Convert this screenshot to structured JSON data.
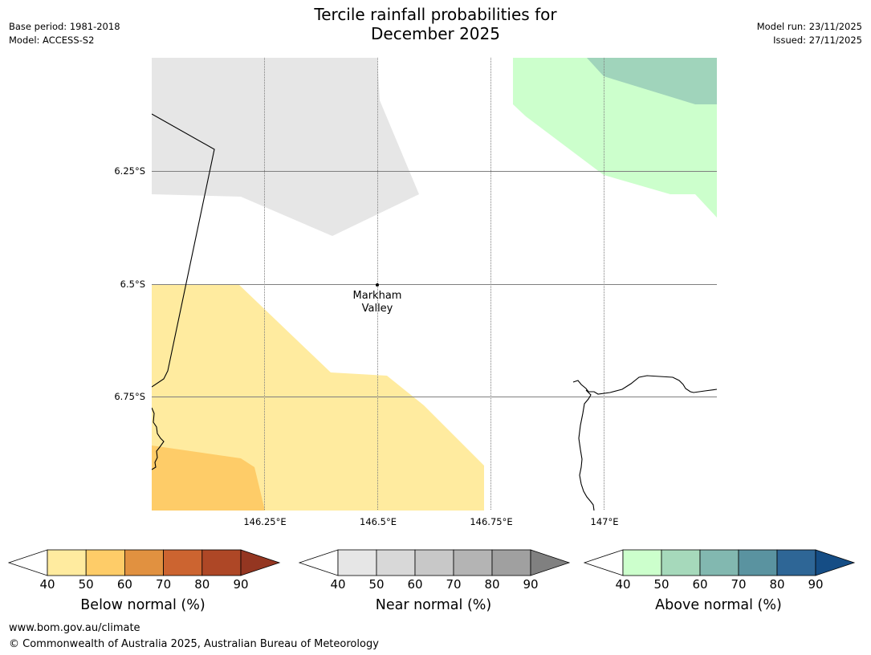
{
  "title": {
    "line1": "Tercile rainfall probabilities for",
    "line2": "December 2025"
  },
  "meta_left": {
    "base_period": "Base period: 1981-2018",
    "model": "Model: ACCESS-S2"
  },
  "meta_right": {
    "model_run": "Model run: 23/11/2025",
    "issued": "Issued: 27/11/2025"
  },
  "map": {
    "lat_labels": [
      "6.25°S",
      "6.5°S",
      "6.75°S"
    ],
    "lon_labels": [
      "146.25°E",
      "146.5°E",
      "146.75°E",
      "147°E"
    ],
    "place": {
      "line1": "Markham",
      "line2": "Valley"
    },
    "colors": {
      "near_normal_40_50": "#e6e6e6",
      "below_normal_40_50": "#ffeb9f",
      "below_normal_50_60": "#fecc68",
      "above_normal_40_50": "#ccffcc",
      "above_normal_50_60": "#a0d4bb",
      "gridline": "#7f7f7f",
      "coast": "#000000"
    }
  },
  "colorbars": [
    {
      "label": "Below normal (%)",
      "ticks": [
        "40",
        "50",
        "60",
        "70",
        "80",
        "90"
      ],
      "colors": [
        "#ffeb9f",
        "#fecc68",
        "#e19140",
        "#cc6430",
        "#ae4726",
        "#943621"
      ]
    },
    {
      "label": "Near normal (%)",
      "ticks": [
        "40",
        "50",
        "60",
        "70",
        "80",
        "90"
      ],
      "colors": [
        "#e6e6e6",
        "#d8d8d8",
        "#c8c8c8",
        "#b4b4b4",
        "#a0a0a0",
        "#808080"
      ]
    },
    {
      "label": "Above normal (%)",
      "ticks": [
        "40",
        "50",
        "60",
        "70",
        "80",
        "90"
      ],
      "colors": [
        "#ccffcc",
        "#a6d9bb",
        "#82b8b0",
        "#5a93a0",
        "#2e6696",
        "#154d85"
      ]
    }
  ],
  "footer": {
    "url": "www.bom.gov.au/climate",
    "copyright": "© Commonwealth of Australia 2025, Australian Bureau of Meteorology"
  }
}
